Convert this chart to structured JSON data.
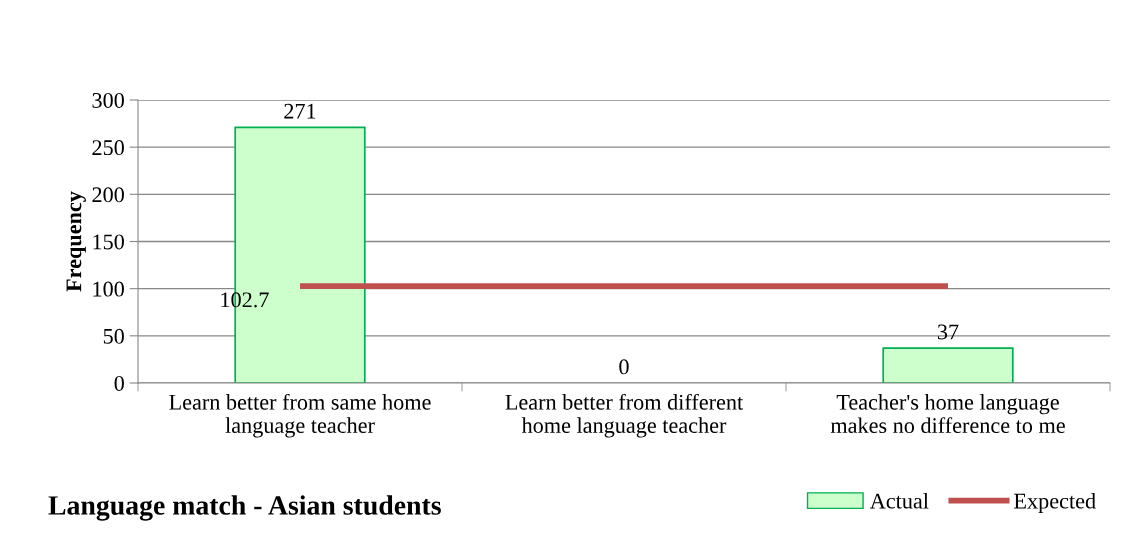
{
  "chart_data": {
    "type": "bar",
    "title": "Language match - Asian students",
    "ylabel": "Frequency",
    "categories": [
      "Learn better from same home\nlanguage teacher",
      "Learn better from different\nhome language teacher",
      "Teacher's home language\nmakes no difference to me"
    ],
    "series": [
      {
        "name": "Actual",
        "color": "#ccffcc",
        "values": [
          271,
          0,
          37
        ],
        "data_labels": true
      },
      {
        "name": "Expected",
        "type": "line",
        "color": "#c0504d",
        "values": [
          102.7,
          102.7,
          102.7
        ],
        "value_labels": [
          "102.7",
          null,
          null
        ]
      }
    ],
    "ylim": [
      0,
      300
    ],
    "yticks": [
      0,
      50,
      100,
      150,
      200,
      250,
      300
    ],
    "grid": "y",
    "legend": "bottom right"
  }
}
